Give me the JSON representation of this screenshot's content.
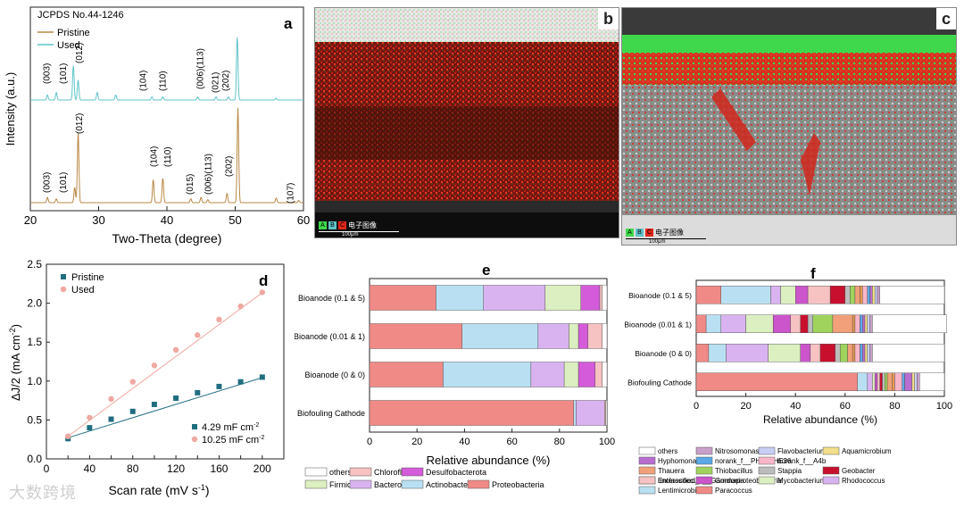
{
  "panel_letters": {
    "a": "a",
    "b": "b",
    "c": "c",
    "d": "d",
    "e": "e",
    "f": "f"
  },
  "colors": {
    "xrd_used": "#5fc3c8",
    "xrd_pristine": "#b88845",
    "d_pristine": "#1f6e80",
    "d_used": "#f0a8a0",
    "sem_red": "#e0261b",
    "sem_green": "#3fd84d"
  },
  "sem": {
    "legend_letters": [
      "A",
      "B",
      "C"
    ],
    "legend_label": "电子图像",
    "scale_label": "100μm"
  },
  "watermark": "大数跨境",
  "chart_data": [
    {
      "id": "a",
      "type": "line",
      "title": "JCPDS No.44-1246",
      "xlabel": "Two-Theta (degree)",
      "ylabel": "Intensity (a.u.)",
      "xlim": [
        20,
        60
      ],
      "xticks": [
        20,
        30,
        40,
        50,
        60
      ],
      "legend": [
        "Pristine",
        "Used"
      ],
      "legend_placement": "top-left",
      "grid": false,
      "series": [
        {
          "name": "Used",
          "peaks": [
            [
              22.5,
              0.08
            ],
            [
              23.8,
              0.12
            ],
            [
              26.3,
              0.55
            ],
            [
              27.0,
              0.32
            ],
            [
              29.8,
              0.12
            ],
            [
              32.5,
              0.08
            ],
            [
              37.8,
              0.05
            ],
            [
              39.4,
              0.05
            ],
            [
              44.5,
              0.05
            ],
            [
              47.2,
              0.05
            ],
            [
              49.0,
              0.05
            ],
            [
              50.3,
              1.0
            ],
            [
              56.0,
              0.03
            ]
          ]
        },
        {
          "name": "Pristine",
          "peaks": [
            [
              22.5,
              0.07
            ],
            [
              23.8,
              0.05
            ],
            [
              26.5,
              0.2
            ],
            [
              27.0,
              0.92
            ],
            [
              38.0,
              0.3
            ],
            [
              39.4,
              0.32
            ],
            [
              43.5,
              0.05
            ],
            [
              45.0,
              0.07
            ],
            [
              46.0,
              0.04
            ],
            [
              48.8,
              0.12
            ],
            [
              50.4,
              1.25
            ],
            [
              56.0,
              0.06
            ],
            [
              59.3,
              0.03
            ]
          ]
        }
      ],
      "peak_labels_used": [
        "(003)",
        "(101)",
        "(012)",
        "(104)",
        "(110)",
        "(006)(113)",
        "(021)",
        "(202)"
      ],
      "peak_labels_pristine": [
        "(003)",
        "(101)",
        "(012)",
        "(104)",
        "(110)",
        "(015)",
        "(006)(113)",
        "(202)",
        "(107)"
      ]
    },
    {
      "id": "d",
      "type": "scatter",
      "xlabel": "Scan rate (mV s",
      "xlabel_sup": "-1",
      "xlabel_end": ")",
      "ylabel": "ΔJ/2 (mA cm",
      "ylabel_sup": "-2",
      "ylabel_end": ")",
      "xlim": [
        0,
        220
      ],
      "ylim": [
        0,
        2.5
      ],
      "xticks": [
        0,
        20,
        40,
        60,
        80,
        100,
        120,
        140,
        160,
        180,
        200
      ],
      "yticks": [
        0.0,
        0.5,
        1.0,
        1.5,
        2.0,
        2.5
      ],
      "legend_placement": "top-left",
      "series": [
        {
          "name": "Pristine",
          "x": [
            20,
            40,
            60,
            80,
            100,
            120,
            140,
            160,
            180,
            200
          ],
          "y": [
            0.26,
            0.4,
            0.51,
            0.61,
            0.7,
            0.78,
            0.85,
            0.93,
            0.99,
            1.05
          ],
          "fit": [
            0.186,
            0.00429
          ],
          "fit_label": "4.29 mF cm",
          "fit_label_sup": "-2"
        },
        {
          "name": "Used",
          "x": [
            20,
            40,
            60,
            80,
            100,
            120,
            140,
            160,
            180,
            200
          ],
          "y": [
            0.29,
            0.53,
            0.77,
            0.99,
            1.2,
            1.4,
            1.59,
            1.79,
            1.96,
            2.14
          ],
          "fit": [
            0.085,
            0.01025
          ],
          "fit_label": "10.25 mF cm",
          "fit_label_sup": "-2"
        }
      ]
    },
    {
      "id": "e",
      "type": "bar",
      "orientation": "horizontal",
      "stacked": true,
      "xlabel": "Relative abundance (%)",
      "xlim": [
        0,
        100
      ],
      "xticks": [
        0,
        20,
        40,
        60,
        80,
        100
      ],
      "categories": [
        "Bioanode (0.1 & 5)",
        "Bioanode (0.01 & 1)",
        "Bioanode (0 & 0)",
        "Biofouling Cathode"
      ],
      "series": [
        {
          "name": "Proteobacteria",
          "color": "#f08a86",
          "values": [
            28,
            39,
            31,
            86
          ]
        },
        {
          "name": "Actinobacteriota",
          "color": "#b9e0f2",
          "values": [
            20,
            32,
            37,
            1
          ]
        },
        {
          "name": "Bacteroidota",
          "color": "#d9b3f0",
          "values": [
            26,
            13,
            14,
            12
          ]
        },
        {
          "name": "Firmicutes",
          "color": "#dcefc0",
          "values": [
            15,
            4,
            6,
            0
          ]
        },
        {
          "name": "Desulfobacterota",
          "color": "#d45bd9",
          "values": [
            8,
            4,
            7,
            0
          ]
        },
        {
          "name": "Chloroflexi",
          "color": "#f6c2c2",
          "values": [
            1,
            6,
            3,
            0.5
          ]
        },
        {
          "name": "others",
          "color": "#ffffff",
          "values": [
            2,
            2,
            2,
            0.5
          ]
        }
      ],
      "legend_placement": "bottom"
    },
    {
      "id": "f",
      "type": "bar",
      "orientation": "horizontal",
      "stacked": true,
      "xlabel": "Relative abundance (%)",
      "xlim": [
        0,
        100
      ],
      "xticks": [
        0,
        20,
        40,
        60,
        80,
        100
      ],
      "categories": [
        "Bioanode (0.1 & 5)",
        "Bioanode (0.01 & 1)",
        "Bioanode (0 & 0)",
        "Biofouling Cathode"
      ],
      "series": [
        {
          "name": "Paracoccus",
          "color": "#f08a86",
          "values": [
            10,
            4,
            5,
            65
          ]
        },
        {
          "name": "Lentimicrobium",
          "color": "#b9e0f2",
          "values": [
            20,
            6,
            7,
            4
          ]
        },
        {
          "name": "Rhodococcus",
          "color": "#d9b3f0",
          "values": [
            4,
            10,
            17,
            2
          ]
        },
        {
          "name": "Mycobacterium",
          "color": "#dcefc0",
          "values": [
            6,
            11,
            13,
            1
          ]
        },
        {
          "name": "Gordonia",
          "color": "#cc55cc",
          "values": [
            5,
            7,
            4,
            1
          ]
        },
        {
          "name": "Enterococcus",
          "color": "#f6c2c2",
          "values": [
            9,
            4,
            4,
            1
          ]
        },
        {
          "name": "Geobacter",
          "color": "#c8102e",
          "values": [
            6,
            3,
            6,
            1
          ]
        },
        {
          "name": "Stappia",
          "color": "#bdbdbd",
          "values": [
            2,
            2,
            2,
            1
          ]
        },
        {
          "name": "Thiobacillus",
          "color": "#9fd35d",
          "values": [
            2,
            8,
            3,
            1
          ]
        },
        {
          "name": "Thauera",
          "color": "#f1a07a",
          "values": [
            2,
            8,
            2,
            2
          ]
        },
        {
          "name": "unclassified_c__Gammaproteobacteria",
          "color": "#e89a4e",
          "values": [
            1,
            1,
            1,
            1
          ]
        },
        {
          "name": "norank_f__A4b",
          "color": "#f8b6c8",
          "values": [
            2,
            2,
            2,
            3
          ]
        },
        {
          "name": "norank_f__PHOS-HE36",
          "color": "#5aa9e6",
          "values": [
            1,
            1,
            1,
            1
          ]
        },
        {
          "name": "Hyphomonas",
          "color": "#b86ecf",
          "values": [
            1,
            1,
            1,
            3
          ]
        },
        {
          "name": "Aquamicrobium",
          "color": "#f3e08a",
          "values": [
            1,
            1,
            1,
            1
          ]
        },
        {
          "name": "Flavobacterium",
          "color": "#c9cef5",
          "values": [
            1,
            1,
            1,
            1
          ]
        },
        {
          "name": "Nitrosomonas",
          "color": "#c9a0c9",
          "values": [
            1,
            1,
            1,
            1
          ]
        },
        {
          "name": "others",
          "color": "#ffffff",
          "values": [
            26,
            30,
            29,
            10
          ]
        }
      ],
      "legend_order": [
        "others",
        "Nitrosomonas",
        "Flavobacterium",
        "Aquamicrobium",
        "Hyphomonas",
        "norank_f__PHOS-HE36",
        "norank_f__A4b",
        "unclassified_c__Gammaproteobacteria",
        "Thauera",
        "Thiobacillus",
        "Stappia",
        "Geobacter",
        "Enterococcus",
        "Gordonia",
        "Mycobacterium",
        "Rhodococcus",
        "Lentimicrobium",
        "Paracoccus"
      ],
      "legend_placement": "bottom"
    }
  ]
}
